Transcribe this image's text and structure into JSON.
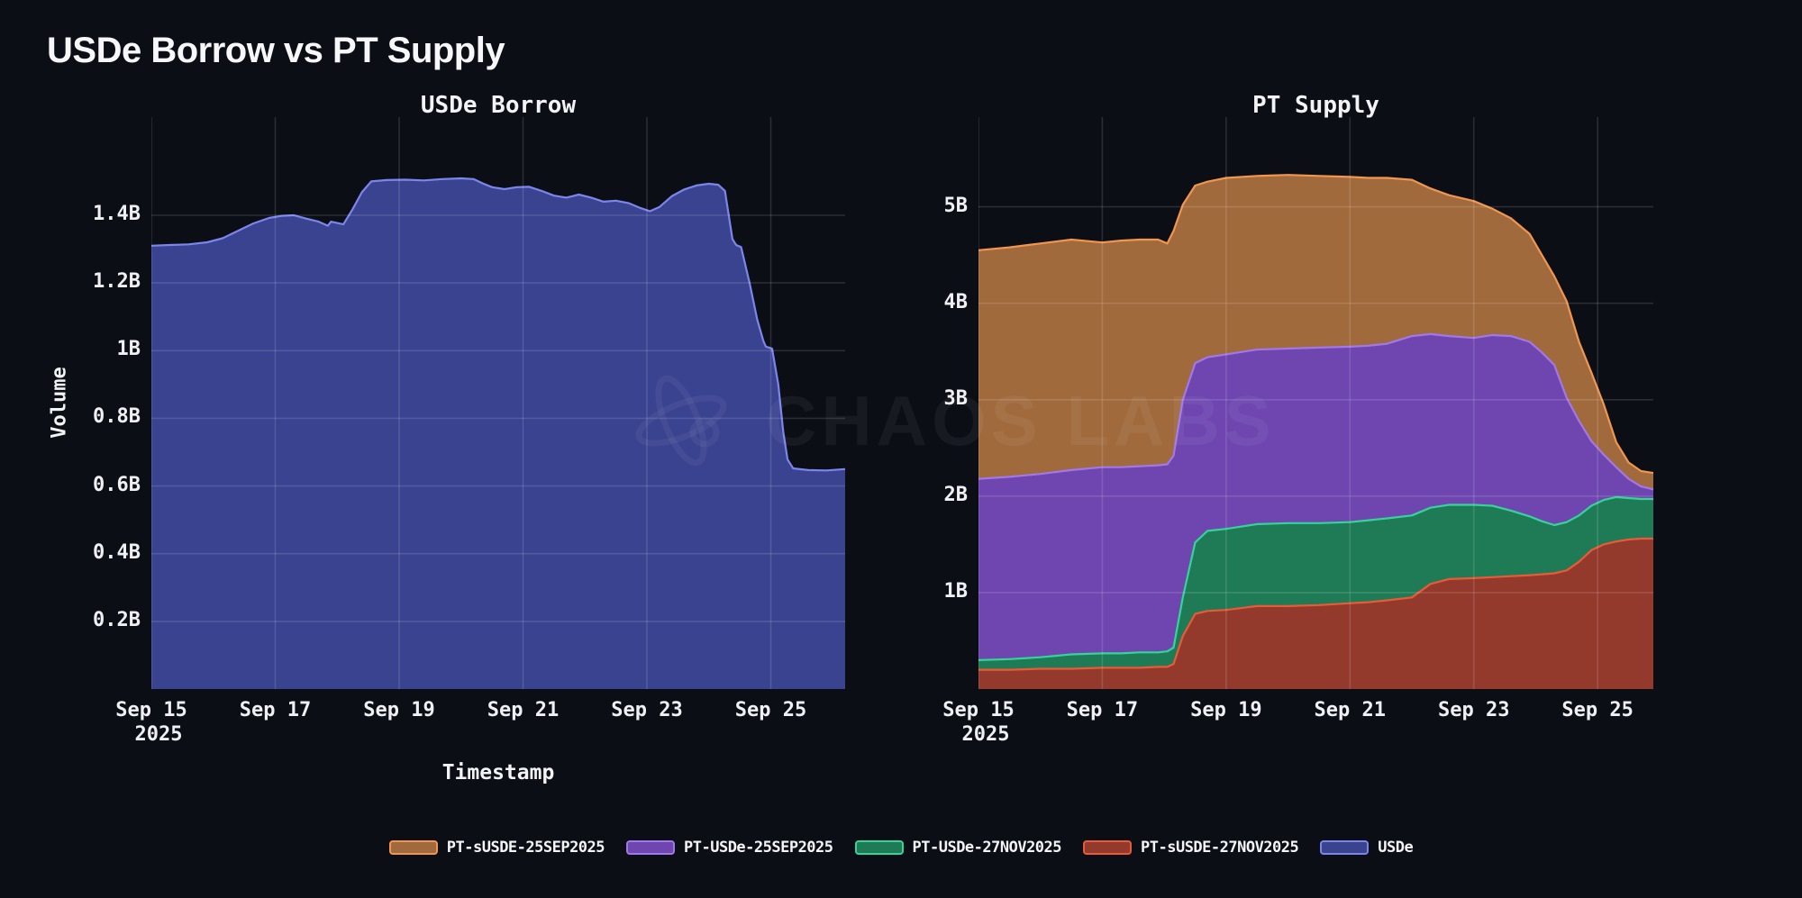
{
  "title": "USDe Borrow vs PT Supply",
  "watermark": {
    "text": "CHAOS LABS",
    "icon": "chaos-labs-atom-icon"
  },
  "colors": {
    "background": "#0b0e15",
    "text": "#f2f3f5",
    "grid": "rgba(255,255,255,0.13)",
    "watermark": "rgba(255,255,255,0.05)"
  },
  "legend": [
    {
      "label": "PT-sUSDE-25SEP2025",
      "fill": "#a16a3d",
      "stroke": "#f0964f"
    },
    {
      "label": "PT-USDe-25SEP2025",
      "fill": "#6f46b0",
      "stroke": "#a078e8"
    },
    {
      "label": "PT-USDe-27NOV2025",
      "fill": "#1f7b55",
      "stroke": "#36d39a"
    },
    {
      "label": "PT-sUSDE-27NOV2025",
      "fill": "#943a2d",
      "stroke": "#e95b38"
    },
    {
      "label": "USDe",
      "fill": "#394390",
      "stroke": "#7c86ea"
    }
  ],
  "chart_data": [
    {
      "type": "area",
      "title": "USDe Borrow",
      "xlabel": "Timestamp",
      "ylabel": "Volume",
      "x_unit": "day of September 2025",
      "x_domain": [
        15,
        26.2
      ],
      "ylim": [
        0,
        1.69
      ],
      "grid": true,
      "legend_position": "bottom",
      "x_tick_values": [
        15,
        17,
        19,
        21,
        23,
        25
      ],
      "x_tick_labels": [
        "Sep 15",
        "Sep 17",
        "Sep 19",
        "Sep 21",
        "Sep 23",
        "Sep 25"
      ],
      "x_tick_sublabels": [
        "2025",
        "",
        "",
        "",
        "",
        ""
      ],
      "y_tick_values": [
        0.2,
        0.4,
        0.6,
        0.8,
        1.0,
        1.2,
        1.4
      ],
      "y_tick_labels": [
        "0.2B",
        "0.4B",
        "0.6B",
        "0.8B",
        "1B",
        "1.2B",
        "1.4B"
      ],
      "series": [
        {
          "name": "USDe",
          "fill": "#394390",
          "stroke": "#7c86ea",
          "points": [
            [
              15.0,
              1.31
            ],
            [
              15.3,
              1.312
            ],
            [
              15.6,
              1.314
            ],
            [
              15.9,
              1.32
            ],
            [
              16.15,
              1.332
            ],
            [
              16.4,
              1.354
            ],
            [
              16.65,
              1.376
            ],
            [
              16.9,
              1.392
            ],
            [
              17.1,
              1.398
            ],
            [
              17.3,
              1.4
            ],
            [
              17.5,
              1.39
            ],
            [
              17.7,
              1.381
            ],
            [
              17.85,
              1.369
            ],
            [
              17.9,
              1.381
            ],
            [
              18.0,
              1.377
            ],
            [
              18.1,
              1.373
            ],
            [
              18.25,
              1.418
            ],
            [
              18.4,
              1.468
            ],
            [
              18.55,
              1.5
            ],
            [
              18.8,
              1.504
            ],
            [
              19.1,
              1.505
            ],
            [
              19.4,
              1.503
            ],
            [
              19.7,
              1.507
            ],
            [
              20.0,
              1.509
            ],
            [
              20.2,
              1.507
            ],
            [
              20.35,
              1.494
            ],
            [
              20.5,
              1.483
            ],
            [
              20.7,
              1.477
            ],
            [
              20.9,
              1.483
            ],
            [
              21.1,
              1.484
            ],
            [
              21.3,
              1.472
            ],
            [
              21.5,
              1.458
            ],
            [
              21.7,
              1.452
            ],
            [
              21.9,
              1.461
            ],
            [
              22.1,
              1.452
            ],
            [
              22.3,
              1.44
            ],
            [
              22.5,
              1.443
            ],
            [
              22.7,
              1.436
            ],
            [
              22.9,
              1.421
            ],
            [
              23.05,
              1.412
            ],
            [
              23.2,
              1.424
            ],
            [
              23.4,
              1.456
            ],
            [
              23.6,
              1.476
            ],
            [
              23.8,
              1.488
            ],
            [
              24.0,
              1.493
            ],
            [
              24.15,
              1.49
            ],
            [
              24.26,
              1.472
            ],
            [
              24.38,
              1.33
            ],
            [
              24.44,
              1.312
            ],
            [
              24.52,
              1.306
            ],
            [
              24.66,
              1.198
            ],
            [
              24.78,
              1.092
            ],
            [
              24.88,
              1.028
            ],
            [
              24.92,
              1.012
            ],
            [
              25.02,
              1.006
            ],
            [
              25.12,
              0.9
            ],
            [
              25.2,
              0.76
            ],
            [
              25.27,
              0.678
            ],
            [
              25.36,
              0.652
            ],
            [
              25.6,
              0.647
            ],
            [
              25.9,
              0.646
            ],
            [
              26.2,
              0.65
            ]
          ]
        }
      ]
    },
    {
      "type": "stacked-area",
      "title": "PT Supply",
      "xlabel": "",
      "ylabel": "",
      "x_unit": "day of September 2025",
      "x_domain": [
        15,
        25.9
      ],
      "ylim": [
        0,
        5.93
      ],
      "grid": true,
      "legend_position": "bottom",
      "stack_order": "bottom-to-top",
      "x_tick_values": [
        15,
        17,
        19,
        21,
        23,
        25
      ],
      "x_tick_labels": [
        "Sep 15",
        "Sep 17",
        "Sep 19",
        "Sep 21",
        "Sep 23",
        "Sep 25"
      ],
      "x_tick_sublabels": [
        "2025",
        "",
        "",
        "",
        "",
        ""
      ],
      "y_tick_values": [
        1,
        2,
        3,
        4,
        5
      ],
      "y_tick_labels": [
        "1B",
        "2B",
        "3B",
        "4B",
        "5B"
      ],
      "x": [
        15.0,
        15.5,
        16.0,
        16.5,
        17.0,
        17.3,
        17.6,
        17.9,
        18.05,
        18.15,
        18.3,
        18.5,
        18.7,
        19.0,
        19.5,
        20.0,
        20.5,
        21.0,
        21.3,
        21.6,
        22.0,
        22.3,
        22.6,
        23.0,
        23.3,
        23.6,
        23.9,
        24.1,
        24.3,
        24.5,
        24.7,
        24.9,
        25.1,
        25.3,
        25.5,
        25.7,
        25.9
      ],
      "series": [
        {
          "name": "PT-sUSDE-27NOV2025",
          "fill": "#943a2d",
          "stroke": "#e95b38",
          "values": [
            0.2,
            0.2,
            0.21,
            0.21,
            0.22,
            0.22,
            0.22,
            0.23,
            0.23,
            0.26,
            0.55,
            0.78,
            0.81,
            0.82,
            0.86,
            0.86,
            0.87,
            0.89,
            0.9,
            0.92,
            0.95,
            1.09,
            1.14,
            1.15,
            1.16,
            1.17,
            1.18,
            1.19,
            1.2,
            1.23,
            1.32,
            1.44,
            1.5,
            1.53,
            1.55,
            1.56,
            1.56
          ]
        },
        {
          "name": "PT-USDe-27NOV2025",
          "fill": "#1f7b55",
          "stroke": "#36d39a",
          "values": [
            0.1,
            0.11,
            0.12,
            0.15,
            0.15,
            0.15,
            0.16,
            0.15,
            0.16,
            0.17,
            0.4,
            0.74,
            0.83,
            0.84,
            0.85,
            0.86,
            0.85,
            0.84,
            0.85,
            0.85,
            0.85,
            0.79,
            0.77,
            0.76,
            0.74,
            0.68,
            0.61,
            0.55,
            0.5,
            0.5,
            0.48,
            0.46,
            0.46,
            0.46,
            0.43,
            0.41,
            0.41
          ]
        },
        {
          "name": "PT-USDe-25SEP2025",
          "fill": "#6f46b0",
          "stroke": "#a078e8",
          "values": [
            1.88,
            1.89,
            1.9,
            1.91,
            1.93,
            1.93,
            1.93,
            1.94,
            1.94,
            1.99,
            2.05,
            1.86,
            1.8,
            1.81,
            1.81,
            1.81,
            1.82,
            1.82,
            1.81,
            1.81,
            1.86,
            1.8,
            1.75,
            1.73,
            1.77,
            1.81,
            1.81,
            1.75,
            1.66,
            1.29,
            0.98,
            0.67,
            0.47,
            0.31,
            0.2,
            0.13,
            0.1
          ]
        },
        {
          "name": "PT-sUSDE-25SEP2025",
          "fill": "#a16a3d",
          "stroke": "#f0964f",
          "values": [
            2.37,
            2.38,
            2.39,
            2.39,
            2.33,
            2.35,
            2.35,
            2.34,
            2.29,
            2.33,
            2.02,
            1.84,
            1.82,
            1.83,
            1.8,
            1.8,
            1.78,
            1.76,
            1.74,
            1.72,
            1.62,
            1.51,
            1.46,
            1.42,
            1.31,
            1.22,
            1.12,
            1.01,
            0.92,
            1.0,
            0.82,
            0.71,
            0.52,
            0.26,
            0.17,
            0.16,
            0.17
          ]
        }
      ]
    }
  ]
}
